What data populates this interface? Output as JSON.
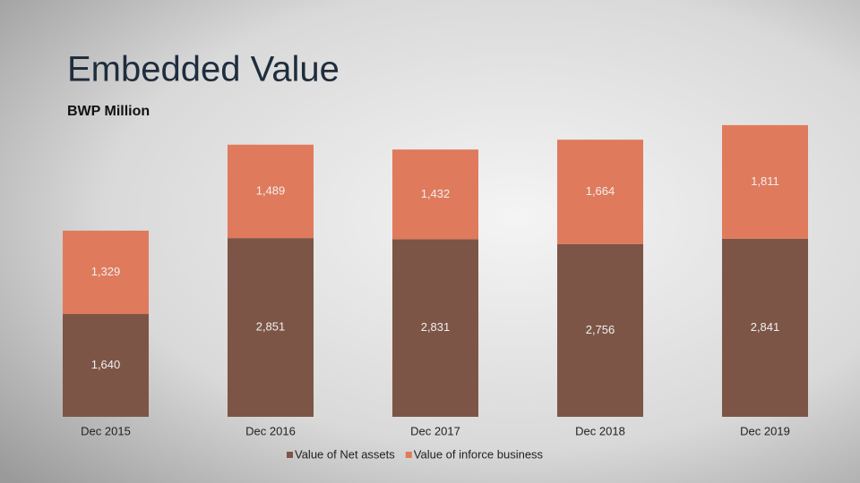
{
  "chart_data": {
    "type": "stacked_bar",
    "title": "Embedded Value",
    "subtitle": "BWP Million",
    "categories": [
      "Dec 2015",
      "Dec 2016",
      "Dec 2017",
      "Dec 2018",
      "Dec 2019"
    ],
    "series": [
      {
        "name": "Value of Net assets",
        "color": "#7d5546",
        "values": [
          1640,
          2851,
          2831,
          2756,
          2841
        ],
        "value_labels": [
          "1,640",
          "2,851",
          "2,831",
          "2,756",
          "2,841"
        ]
      },
      {
        "name": "Value of inforce business",
        "color": "#e07a5c",
        "values": [
          1329,
          1489,
          1432,
          1664,
          1811
        ],
        "value_labels": [
          "1,329",
          "1,489",
          "1,432",
          "1,664",
          "1,811"
        ]
      }
    ],
    "ylim": [
      0,
      5000
    ],
    "legend": "bottom"
  }
}
